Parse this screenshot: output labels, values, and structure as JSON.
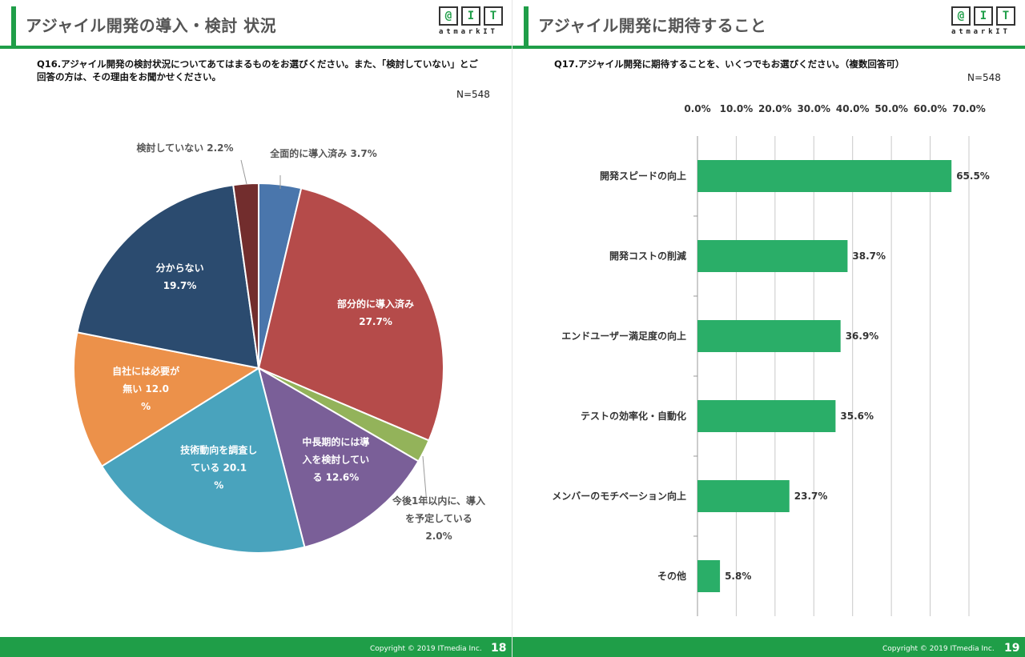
{
  "left": {
    "title": "アジャイル開発の導入・検討 状況",
    "logo": {
      "letters": [
        "@",
        "I",
        "T"
      ],
      "text": "atmarkIT"
    },
    "question": "Q16.アジャイル開発の検討状況についてあてはまるものをお選びください。また、「検討していない」とご回答の方は、その理由をお聞かせください。",
    "n": "N=548",
    "copyright": "Copyright © 2019 ITmedia Inc.",
    "page": "18"
  },
  "right": {
    "title": "アジャイル開発に期待すること",
    "logo": {
      "letters": [
        "@",
        "I",
        "T"
      ],
      "text": "atmarkIT"
    },
    "question": "Q17.アジャイル開発に期待することを、いくつでもお選びください。（複数回答可）",
    "n": "N=548",
    "copyright": "Copyright © 2019 ITmedia Inc.",
    "page": "19"
  },
  "colors": {
    "brand_green": "#1f9e48",
    "bar_green": "#2aae68"
  },
  "chart_data": [
    {
      "type": "pie",
      "slices": [
        {
          "label": "全面的に導入済み",
          "value": 3.7,
          "value_label": "3.7%",
          "color": "#4a76ac"
        },
        {
          "label": "部分的に導入済み",
          "value": 27.7,
          "value_label": "27.7%",
          "color": "#b54b4a"
        },
        {
          "label": "今後1年以内に、導入を予定している",
          "value": 2.0,
          "value_label": "2.0%",
          "color": "#93b35a"
        },
        {
          "label": "中長期的には導入を検討している",
          "value": 12.6,
          "value_label": "12.6%",
          "color": "#7a5f98"
        },
        {
          "label": "技術動向を調査している",
          "value": 20.1,
          "value_label": "20.1%",
          "color": "#49a3bd"
        },
        {
          "label": "自社には必要が無い",
          "value": 12.0,
          "value_label": "12.0%",
          "color": "#ec914a"
        },
        {
          "label": "分からない",
          "value": 19.7,
          "value_label": "19.7%",
          "color": "#2b4b6f"
        },
        {
          "label": "検討していない",
          "value": 2.2,
          "value_label": "2.2%",
          "color": "#722d2d"
        }
      ]
    },
    {
      "type": "bar",
      "orientation": "horizontal",
      "categories": [
        "開発スピードの向上",
        "開発コストの削減",
        "エンドユーザー満足度の向上",
        "テストの効率化・自動化",
        "メンバーのモチベーション向上",
        "その他"
      ],
      "values": [
        65.5,
        38.7,
        36.9,
        35.6,
        23.7,
        5.8
      ],
      "value_labels": [
        "65.5%",
        "38.7%",
        "36.9%",
        "35.6%",
        "23.7%",
        "5.8%"
      ],
      "xlim": [
        0,
        70
      ],
      "x_ticks": [
        "0.0%",
        "10.0%",
        "20.0%",
        "30.0%",
        "40.0%",
        "50.0%",
        "60.0%",
        "70.0%"
      ],
      "grid": true,
      "x_axis_position": "top"
    }
  ]
}
